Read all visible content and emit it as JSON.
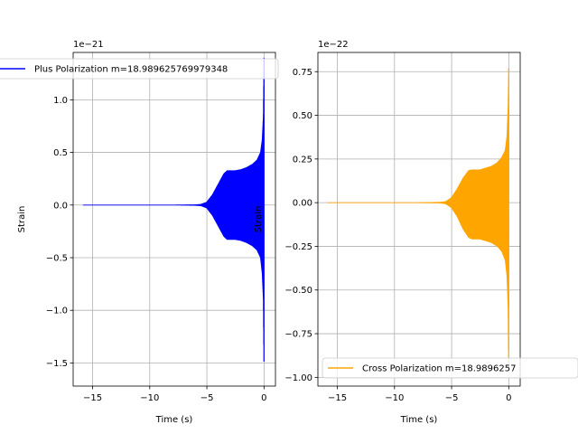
{
  "chart_data": [
    {
      "type": "line",
      "panel": "left",
      "xlabel": "Time (s)",
      "ylabel": "Strain",
      "offset_text": "1e−21",
      "xlim": [
        -16.7,
        1.0
      ],
      "ylim": [
        -1.72,
        1.45
      ],
      "xticks": [
        -15,
        -10,
        -5,
        0
      ],
      "xtick_labels": [
        "−15",
        "−10",
        "−5",
        "0"
      ],
      "yticks": [
        1.0,
        0.5,
        0.0,
        -0.5,
        -1.0,
        -1.5
      ],
      "ytick_labels": [
        "1.0",
        "0.5",
        "0.0",
        "−0.5",
        "−1.0",
        "−1.5"
      ],
      "grid": true,
      "legend_position": "top",
      "series": [
        {
          "name": "Plus Polarization m=18.989625769979348",
          "color": "#0000ff",
          "envelope": {
            "x": [
              -15.8,
              -8.0,
              -6.0,
              -5.5,
              -5.0,
              -4.5,
              -4.0,
              -3.5,
              -3.2,
              -3.0,
              -2.5,
              -2.0,
              -1.5,
              -1.0,
              -0.6,
              -0.3,
              -0.15,
              -0.05,
              0.0
            ],
            "upper": [
              0.003,
              0.003,
              0.006,
              0.01,
              0.03,
              0.1,
              0.2,
              0.3,
              0.33,
              0.33,
              0.33,
              0.34,
              0.36,
              0.39,
              0.43,
              0.5,
              0.62,
              0.85,
              1.4
            ],
            "lower": [
              -0.003,
              -0.003,
              -0.006,
              -0.01,
              -0.03,
              -0.1,
              -0.2,
              -0.3,
              -0.33,
              -0.33,
              -0.33,
              -0.34,
              -0.36,
              -0.39,
              -0.43,
              -0.5,
              -0.65,
              -0.9,
              -1.57
            ]
          }
        }
      ]
    },
    {
      "type": "line",
      "panel": "right",
      "xlabel": "Time (s)",
      "ylabel": "Strain",
      "offset_text": "1e−22",
      "xlim": [
        -16.7,
        1.0
      ],
      "ylim": [
        -1.05,
        0.86
      ],
      "xticks": [
        -15,
        -10,
        -5,
        0
      ],
      "xtick_labels": [
        "−15",
        "−10",
        "−5",
        "0"
      ],
      "yticks": [
        0.75,
        0.5,
        0.25,
        0.0,
        -0.25,
        -0.5,
        -0.75,
        -1.0
      ],
      "ytick_labels": [
        "0.75",
        "0.50",
        "0.25",
        "0.00",
        "−0.25",
        "−0.50",
        "−0.75",
        "−1.00"
      ],
      "grid": true,
      "legend_position": "bottom",
      "series": [
        {
          "name": "Cross Polarization m=18.9896257",
          "color": "#ffa500",
          "envelope": {
            "x": [
              -15.8,
              -8.0,
              -6.0,
              -5.5,
              -5.0,
              -4.5,
              -4.0,
              -3.5,
              -3.2,
              -3.0,
              -2.5,
              -2.0,
              -1.5,
              -1.0,
              -0.6,
              -0.3,
              -0.15,
              -0.05,
              0.0
            ],
            "upper": [
              0.002,
              0.002,
              0.004,
              0.008,
              0.03,
              0.08,
              0.14,
              0.185,
              0.19,
              0.19,
              0.19,
              0.2,
              0.21,
              0.23,
              0.26,
              0.3,
              0.38,
              0.55,
              0.77
            ],
            "lower": [
              -0.002,
              -0.002,
              -0.004,
              -0.008,
              -0.03,
              -0.08,
              -0.15,
              -0.2,
              -0.21,
              -0.21,
              -0.21,
              -0.22,
              -0.23,
              -0.25,
              -0.28,
              -0.33,
              -0.42,
              -0.6,
              -0.98
            ]
          }
        }
      ]
    }
  ]
}
